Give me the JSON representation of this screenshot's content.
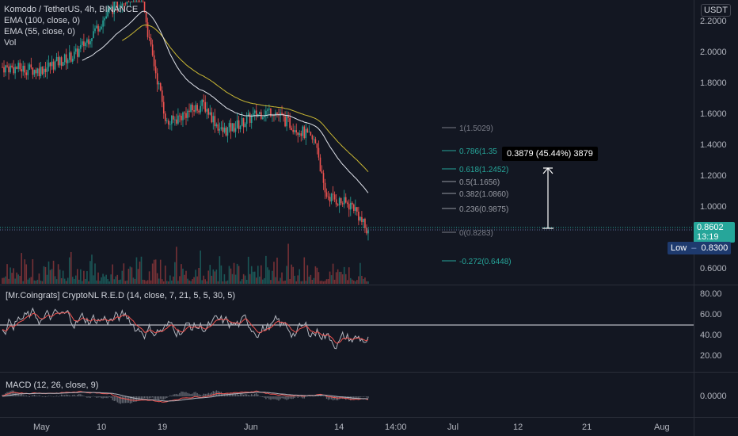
{
  "header": {
    "title": "Komodo / TetherUS, 4h, BINANCE",
    "currency": "USDT",
    "indicators": [
      "EMA (100, close, 0)",
      "EMA (55, close, 0)",
      "Vol"
    ]
  },
  "price_axis": {
    "labels": [
      "2.2000",
      "2.0000",
      "1.8000",
      "1.6000",
      "1.4000",
      "1.2000",
      "1.0000",
      "0.6000"
    ],
    "last_price": "0.8602",
    "countdown": "13:19",
    "low_label": "Low",
    "low_value": "0.8300"
  },
  "fib_levels": [
    {
      "label": "1(1.5029)",
      "color": "#787b86"
    },
    {
      "label": "0.786(1.35",
      "color": "#26a69a"
    },
    {
      "label": "0.618(1.2452)",
      "color": "#26a69a"
    },
    {
      "label": "0.5(1.1656)",
      "color": "#9598a1"
    },
    {
      "label": "0.382(1.0860)",
      "color": "#9598a1"
    },
    {
      "label": "0.236(0.9875)",
      "color": "#9598a1"
    },
    {
      "label": "0(0.8283)",
      "color": "#787b86"
    },
    {
      "label": "-0.272(0.6448)",
      "color": "#26a69a"
    }
  ],
  "measure_tooltip": "0.3879 (45.44%) 3879",
  "rsi_panel": {
    "title": "[Mr.Coingrats] CryptoNL R.E.D (14, close, 7, 21, 5, 5, 30, 5)",
    "labels": [
      "80.00",
      "60.00",
      "40.00",
      "20.00"
    ]
  },
  "macd_panel": {
    "title": "MACD (12, 26, close, 9)",
    "labels": [
      "0.0000"
    ]
  },
  "time_axis": {
    "labels": [
      "May",
      "10",
      "19",
      "Jun",
      "14",
      "14:00",
      "Jul",
      "12",
      "21",
      "Aug"
    ]
  },
  "colors": {
    "background": "#131722",
    "up": "#26a69a",
    "down": "#ef5350",
    "ema100": "#c9b733",
    "ema55": "#e0e3eb",
    "fib_teal": "#26a69a",
    "low_badge": "#1e3a6e"
  }
}
